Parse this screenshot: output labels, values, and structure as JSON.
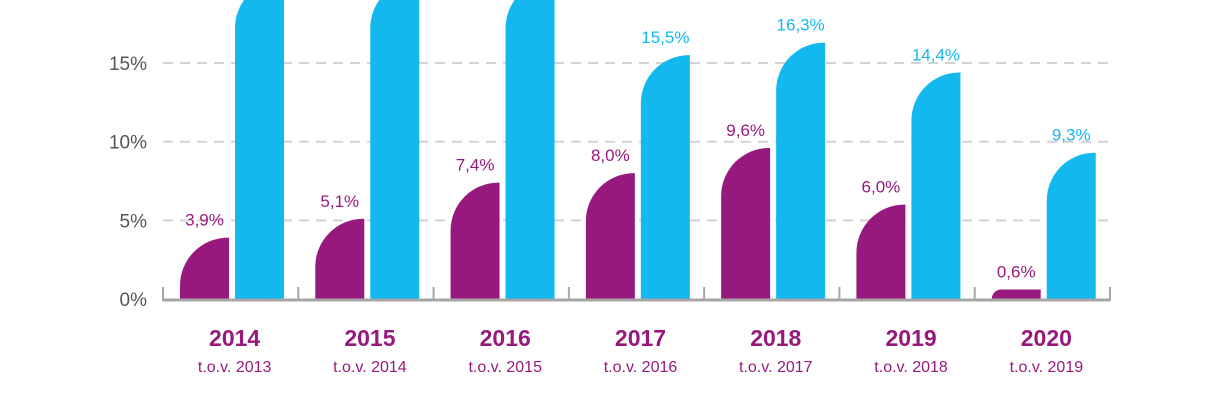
{
  "chart_data": {
    "type": "bar",
    "title": "",
    "xlabel": "",
    "ylabel": "",
    "ylim": [
      0,
      15
    ],
    "y_ticks": [
      "0%",
      "5%",
      "10%",
      "15%"
    ],
    "y_tick_values": [
      0,
      5,
      10,
      15
    ],
    "grid": true,
    "grid_style": "dashed",
    "legend": "none",
    "categories": [
      "2014",
      "2015",
      "2016",
      "2017",
      "2018",
      "2019",
      "2020"
    ],
    "category_sublabels": [
      "t.o.v. 2013",
      "t.o.v. 2014",
      "t.o.v. 2015",
      "t.o.v. 2016",
      "t.o.v. 2017",
      "t.o.v. 2018",
      "t.o.v. 2019"
    ],
    "series": [
      {
        "name": "series-purple",
        "color": "#97197d",
        "values": [
          3.9,
          5.1,
          7.4,
          8.0,
          9.6,
          6.0,
          0.6
        ],
        "labels": [
          "3,9%",
          "5,1%",
          "7,4%",
          "8,0%",
          "9,6%",
          "6,0%",
          "0,6%"
        ]
      },
      {
        "name": "series-blue",
        "color": "#12b8ee",
        "values": [
          null,
          null,
          null,
          15.5,
          16.3,
          14.4,
          9.3
        ],
        "labels": [
          "",
          "",
          "",
          "15,5%",
          "16,3%",
          "14,4%",
          "9,3%"
        ],
        "note": "first three bars extend beyond the visible top edge; values not shown"
      }
    ]
  },
  "colors": {
    "purple": "#97197d",
    "blue": "#12b8ee",
    "axis": "#a6a6a6",
    "grid": "#d3d3d3",
    "tick_text": "#555555"
  }
}
